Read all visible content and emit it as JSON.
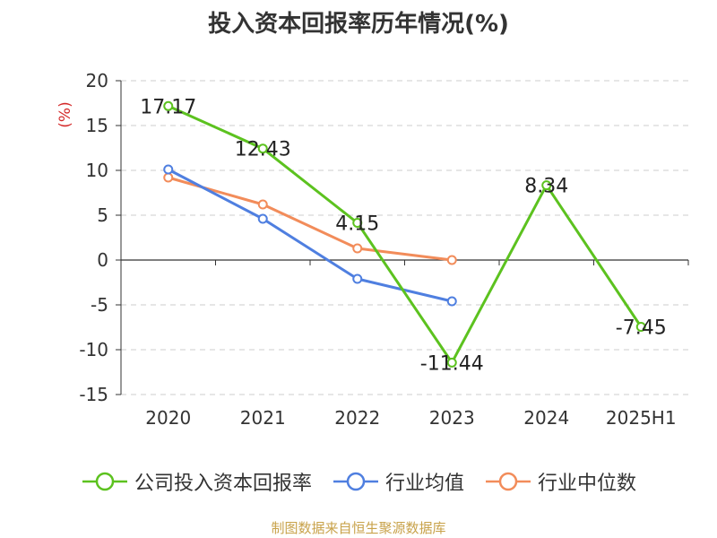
{
  "title": "投入资本回报率历年情况(%)",
  "source": "制图数据来自恒生聚源数据库",
  "chart_data": {
    "type": "line",
    "categories": [
      "2020",
      "2021",
      "2022",
      "2023",
      "2024",
      "2025H1"
    ],
    "ylabel": "(%)",
    "ylim": [
      -15,
      20
    ],
    "yticks": [
      20,
      15,
      10,
      5,
      0,
      -5,
      -10,
      -15
    ],
    "grid": true,
    "legend_position": "bottom",
    "series": [
      {
        "name": "公司投入资本回报率",
        "color": "#5cc21f",
        "values": [
          17.17,
          12.43,
          4.15,
          -11.44,
          8.34,
          -7.45
        ],
        "labels": true
      },
      {
        "name": "行业均值",
        "color": "#4f7fe0",
        "values": [
          10.1,
          4.6,
          -2.1,
          -4.6,
          null,
          null
        ],
        "labels": false
      },
      {
        "name": "行业中位数",
        "color": "#f28c5a",
        "values": [
          9.2,
          6.2,
          1.3,
          0.0,
          null,
          null
        ],
        "labels": false
      }
    ]
  }
}
